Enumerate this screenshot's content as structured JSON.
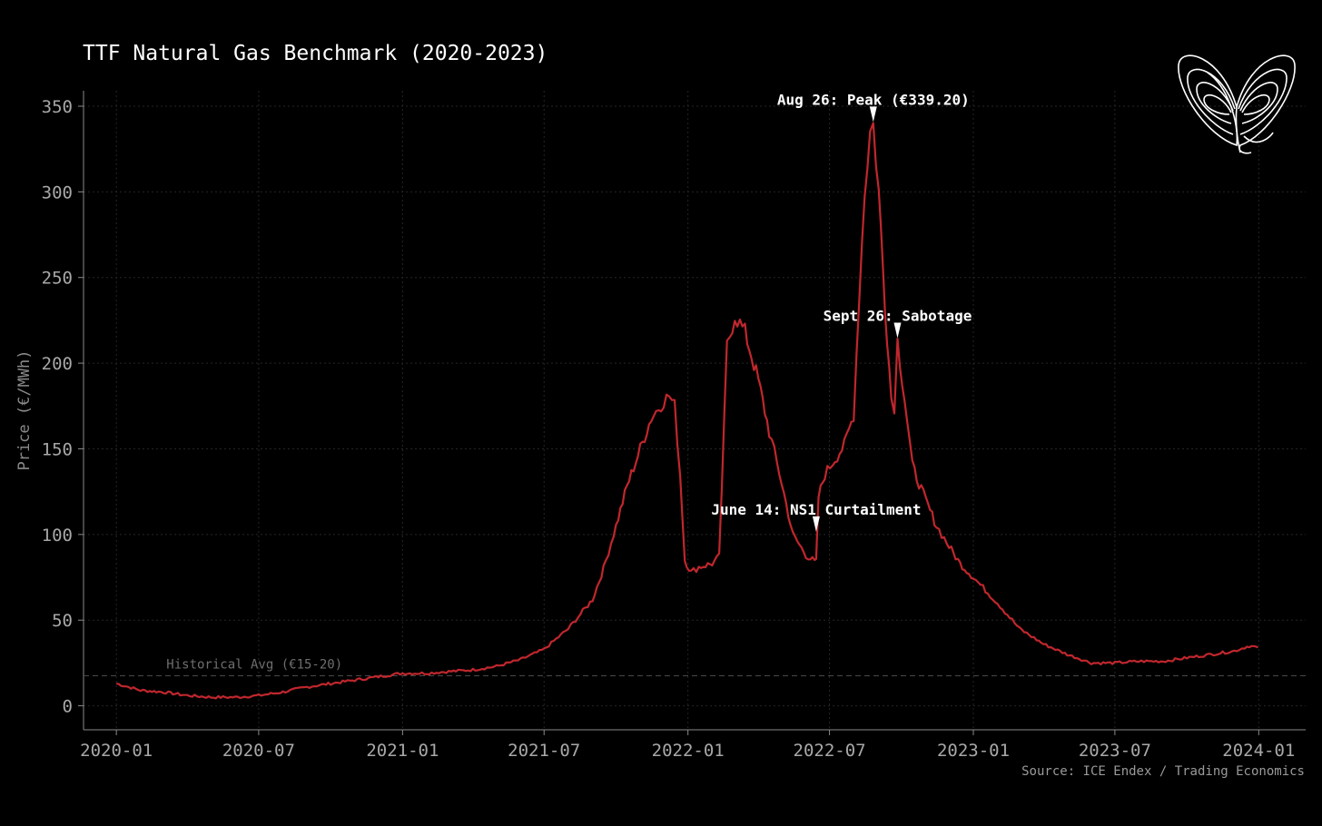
{
  "chart_data": {
    "type": "line",
    "title": "TTF Natural Gas Benchmark (2020-2023)",
    "ylabel": "Price (€/MWh)",
    "xlabel": "",
    "ylim": [
      -14,
      359
    ],
    "xlim": [
      "2019-11-20",
      "2024-03-01"
    ],
    "grid": true,
    "y_ticks": [
      0,
      50,
      100,
      150,
      200,
      250,
      300,
      350
    ],
    "x_ticks": [
      "2020-01",
      "2020-07",
      "2021-01",
      "2021-07",
      "2022-01",
      "2022-07",
      "2023-01",
      "2023-07",
      "2024-01"
    ],
    "series": [
      {
        "color": "#c0272d",
        "points": [
          [
            "2020-01-01",
            13
          ],
          [
            "2020-02-01",
            9
          ],
          [
            "2020-03-01",
            8
          ],
          [
            "2020-04-01",
            6
          ],
          [
            "2020-05-01",
            5
          ],
          [
            "2020-06-01",
            5
          ],
          [
            "2020-07-01",
            6
          ],
          [
            "2020-08-01",
            8
          ],
          [
            "2020-09-01",
            11
          ],
          [
            "2020-10-01",
            13
          ],
          [
            "2020-11-01",
            15
          ],
          [
            "2020-12-01",
            17
          ],
          [
            "2021-01-01",
            19
          ],
          [
            "2021-02-01",
            19
          ],
          [
            "2021-03-01",
            20
          ],
          [
            "2021-04-01",
            21
          ],
          [
            "2021-05-01",
            23
          ],
          [
            "2021-06-01",
            27
          ],
          [
            "2021-07-01",
            33
          ],
          [
            "2021-08-01",
            45
          ],
          [
            "2021-09-01",
            62
          ],
          [
            "2021-09-15",
            80
          ],
          [
            "2021-10-01",
            105
          ],
          [
            "2021-10-15",
            128
          ],
          [
            "2021-11-01",
            150
          ],
          [
            "2021-11-15",
            168
          ],
          [
            "2021-12-01",
            178
          ],
          [
            "2021-12-08",
            181
          ],
          [
            "2021-12-15",
            175
          ],
          [
            "2021-12-22",
            135
          ],
          [
            "2021-12-28",
            85
          ],
          [
            "2022-01-05",
            78
          ],
          [
            "2022-01-15",
            81
          ],
          [
            "2022-02-01",
            83
          ],
          [
            "2022-02-10",
            87
          ],
          [
            "2022-02-20",
            210
          ],
          [
            "2022-03-02",
            228
          ],
          [
            "2022-03-15",
            218
          ],
          [
            "2022-04-01",
            190
          ],
          [
            "2022-04-15",
            160
          ],
          [
            "2022-05-01",
            130
          ],
          [
            "2022-05-15",
            100
          ],
          [
            "2022-06-01",
            88
          ],
          [
            "2022-06-12",
            84
          ],
          [
            "2022-06-14",
            84
          ],
          [
            "2022-06-17",
            122
          ],
          [
            "2022-06-25",
            135
          ],
          [
            "2022-07-05",
            142
          ],
          [
            "2022-07-20",
            152
          ],
          [
            "2022-08-01",
            170
          ],
          [
            "2022-08-08",
            240
          ],
          [
            "2022-08-15",
            300
          ],
          [
            "2022-08-22",
            335
          ],
          [
            "2022-08-26",
            339
          ],
          [
            "2022-09-02",
            300
          ],
          [
            "2022-09-10",
            235
          ],
          [
            "2022-09-18",
            180
          ],
          [
            "2022-09-22",
            175
          ],
          [
            "2022-09-26",
            213
          ],
          [
            "2022-10-05",
            180
          ],
          [
            "2022-10-15",
            140
          ],
          [
            "2022-11-01",
            120
          ],
          [
            "2022-11-15",
            105
          ],
          [
            "2022-12-01",
            93
          ],
          [
            "2022-12-15",
            83
          ],
          [
            "2023-01-01",
            75
          ],
          [
            "2023-02-01",
            60
          ],
          [
            "2023-03-01",
            45
          ],
          [
            "2023-04-01",
            36
          ],
          [
            "2023-05-01",
            30
          ],
          [
            "2023-06-01",
            25
          ],
          [
            "2023-07-01",
            25
          ],
          [
            "2023-08-01",
            26
          ],
          [
            "2023-09-01",
            26
          ],
          [
            "2023-10-01",
            28
          ],
          [
            "2023-11-01",
            30
          ],
          [
            "2023-12-01",
            32
          ],
          [
            "2023-12-20",
            35
          ],
          [
            "2023-12-31",
            34
          ]
        ]
      }
    ],
    "annotations": [
      {
        "label": "Aug 26: Peak (€339.20)",
        "x": "2022-08-26",
        "y": 339.2
      },
      {
        "label": "Sept 26: Sabotage",
        "x": "2022-09-26",
        "y": 213
      },
      {
        "label": "June 14: NS1 Curtailment",
        "x": "2022-06-14",
        "y": 100
      }
    ],
    "reference_line": {
      "label": "Historical Avg (€15-20)",
      "y": 17.5,
      "style": "dashed"
    },
    "source": "Source: ICE Endex / Trading Economics"
  },
  "colors": {
    "background": "#000000",
    "line": "#c0272d",
    "grid": "#2b2b2b",
    "text": "#a8a8a8"
  },
  "logo": {
    "icon": "lorenz-attractor-icon"
  }
}
